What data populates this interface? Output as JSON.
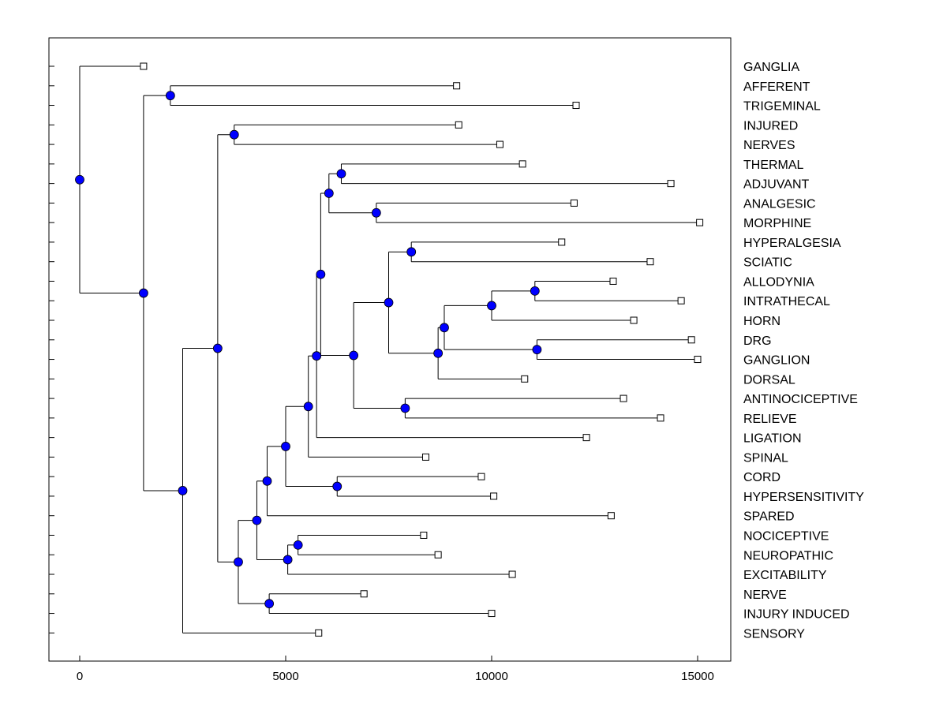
{
  "chart_data": {
    "type": "dendrogram",
    "title": "",
    "xlabel": "",
    "ylabel": "",
    "xlim": [
      -750,
      15800
    ],
    "xticks": [
      0,
      5000,
      10000,
      15000
    ],
    "xtick_labels": [
      "0",
      "5000",
      "10000",
      "15000"
    ],
    "leaves": [
      {
        "label": "GANGLIA",
        "value": 1550
      },
      {
        "label": "AFFERENT",
        "value": 9150
      },
      {
        "label": "TRIGEMINAL",
        "value": 12050
      },
      {
        "label": "INJURED",
        "value": 9200
      },
      {
        "label": "NERVES",
        "value": 10200
      },
      {
        "label": "THERMAL",
        "value": 10750
      },
      {
        "label": "ADJUVANT",
        "value": 14350
      },
      {
        "label": "ANALGESIC",
        "value": 12000
      },
      {
        "label": "MORPHINE",
        "value": 15050
      },
      {
        "label": "HYPERALGESIA",
        "value": 11700
      },
      {
        "label": "SCIATIC",
        "value": 13850
      },
      {
        "label": "ALLODYNIA",
        "value": 12950
      },
      {
        "label": "INTRATHECAL",
        "value": 14600
      },
      {
        "label": "HORN",
        "value": 13450
      },
      {
        "label": "DRG",
        "value": 14850
      },
      {
        "label": "GANGLION",
        "value": 15000
      },
      {
        "label": "DORSAL",
        "value": 10800
      },
      {
        "label": "ANTINOCICEPTIVE",
        "value": 13200
      },
      {
        "label": "RELIEVE",
        "value": 14100
      },
      {
        "label": "LIGATION",
        "value": 12300
      },
      {
        "label": "SPINAL",
        "value": 8400
      },
      {
        "label": "CORD",
        "value": 9750
      },
      {
        "label": "HYPERSENSITIVITY",
        "value": 10050
      },
      {
        "label": "SPARED",
        "value": 12900
      },
      {
        "label": "NOCICEPTIVE",
        "value": 8350
      },
      {
        "label": "NEUROPATHIC",
        "value": 8700
      },
      {
        "label": "EXCITABILITY",
        "value": 10500
      },
      {
        "label": "NERVE",
        "value": 6900
      },
      {
        "label": "INJURY INDUCED",
        "value": 10000
      },
      {
        "label": "SENSORY",
        "value": 5800
      }
    ],
    "merges": [
      {
        "id": "n_ab",
        "value": 2200,
        "children": [
          "AFFERENT",
          "TRIGEMINAL"
        ]
      },
      {
        "id": "n_in",
        "value": 3750,
        "children": [
          "INJURED",
          "NERVES"
        ]
      },
      {
        "id": "n_ta",
        "value": 6350,
        "children": [
          "THERMAL",
          "ADJUVANT"
        ]
      },
      {
        "id": "n_am",
        "value": 7200,
        "children": [
          "ANALGESIC",
          "MORPHINE"
        ]
      },
      {
        "id": "n_tam",
        "value": 6050,
        "children": [
          "n_ta",
          "n_am"
        ]
      },
      {
        "id": "n_hs",
        "value": 8050,
        "children": [
          "HYPERALGESIA",
          "SCIATIC"
        ]
      },
      {
        "id": "n_ai",
        "value": 11050,
        "children": [
          "ALLODYNIA",
          "INTRATHECAL"
        ]
      },
      {
        "id": "n_aih",
        "value": 10000,
        "children": [
          "n_ai",
          "HORN"
        ]
      },
      {
        "id": "n_dg",
        "value": 11100,
        "children": [
          "DRG",
          "GANGLION"
        ]
      },
      {
        "id": "n_aihdg",
        "value": 8850,
        "children": [
          "n_aih",
          "n_dg"
        ]
      },
      {
        "id": "n_pd",
        "value": 8700,
        "children": [
          "n_aihdg",
          "DORSAL"
        ]
      },
      {
        "id": "n_hsp",
        "value": 7500,
        "children": [
          "n_hs",
          "n_pd"
        ]
      },
      {
        "id": "n_ar",
        "value": 7900,
        "children": [
          "ANTINOCICEPTIVE",
          "RELIEVE"
        ]
      },
      {
        "id": "n_q",
        "value": 6650,
        "children": [
          "n_hsp",
          "n_ar"
        ]
      },
      {
        "id": "n_upper",
        "value": 5850,
        "children": [
          "n_tam",
          "n_q"
        ]
      },
      {
        "id": "n_ul",
        "value": 5750,
        "children": [
          "n_upper",
          "LIGATION"
        ]
      },
      {
        "id": "n_uls",
        "value": 5550,
        "children": [
          "n_ul",
          "SPINAL"
        ]
      },
      {
        "id": "n_ch",
        "value": 6250,
        "children": [
          "CORD",
          "HYPERSENSITIVITY"
        ]
      },
      {
        "id": "n_b",
        "value": 5000,
        "children": [
          "n_uls",
          "n_ch"
        ]
      },
      {
        "id": "n_bs",
        "value": 4550,
        "children": [
          "n_b",
          "SPARED"
        ]
      },
      {
        "id": "n_nn",
        "value": 5300,
        "children": [
          "NOCICEPTIVE",
          "NEUROPATHIC"
        ]
      },
      {
        "id": "n_nne",
        "value": 5050,
        "children": [
          "n_nn",
          "EXCITABILITY"
        ]
      },
      {
        "id": "n_c",
        "value": 4300,
        "children": [
          "n_bs",
          "n_nne"
        ]
      },
      {
        "id": "n_ni",
        "value": 4600,
        "children": [
          "NERVE",
          "INJURY INDUCED"
        ]
      },
      {
        "id": "n_d",
        "value": 3850,
        "children": [
          "n_c",
          "n_ni"
        ]
      },
      {
        "id": "n_e",
        "value": 3350,
        "children": [
          "n_in",
          "n_d"
        ]
      },
      {
        "id": "n_f",
        "value": 2500,
        "children": [
          "n_e",
          "SENSORY"
        ]
      },
      {
        "id": "n_g",
        "value": 1550,
        "children": [
          "n_ab",
          "n_f"
        ]
      },
      {
        "id": "n_root",
        "value": 0,
        "children": [
          "GANGLIA",
          "n_g"
        ]
      }
    ],
    "colors": {
      "node_fill": "#0000ff",
      "leaf_fill": "#ffffff",
      "line": "#000000"
    }
  }
}
